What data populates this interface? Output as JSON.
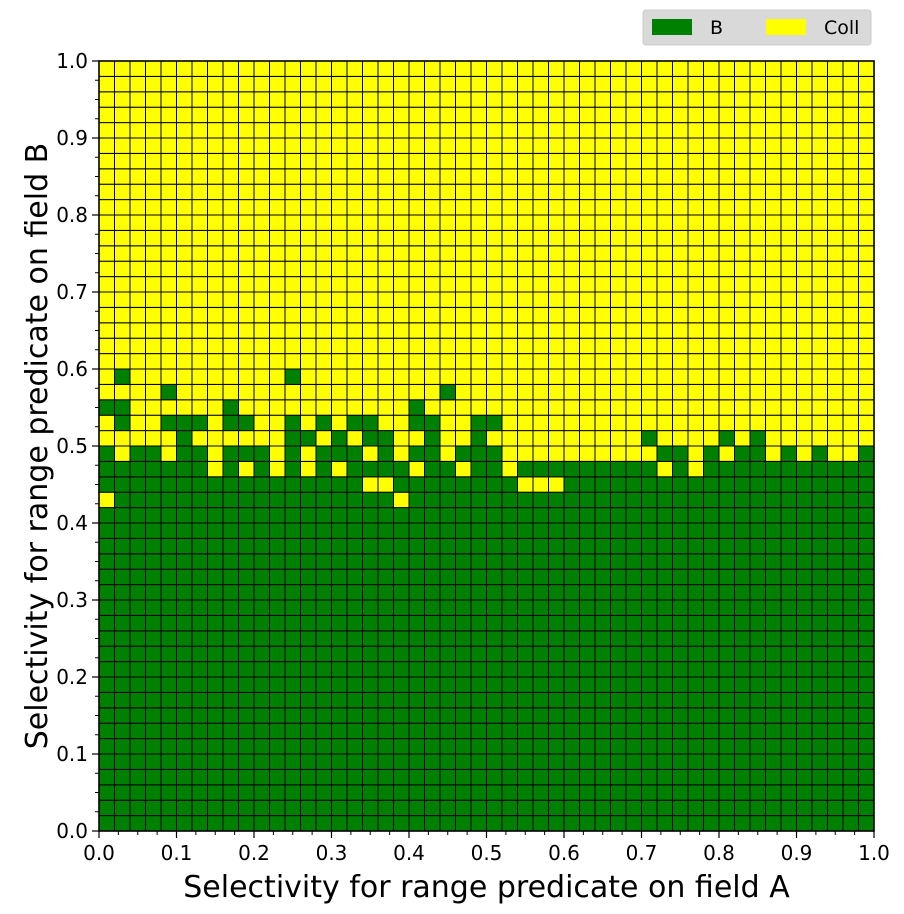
{
  "chart_data": {
    "type": "heatmap",
    "title": "",
    "xlabel": "Selectivity for range predicate on field A",
    "ylabel": "Selectivity for range predicate on field B",
    "xlim": [
      0.0,
      1.0
    ],
    "ylim": [
      0.0,
      1.0
    ],
    "x_ticks": [
      "0.0",
      "0.1",
      "0.2",
      "0.3",
      "0.4",
      "0.5",
      "0.6",
      "0.7",
      "0.8",
      "0.9",
      "1.0"
    ],
    "y_ticks": [
      "0.0",
      "0.1",
      "0.2",
      "0.3",
      "0.4",
      "0.5",
      "0.6",
      "0.7",
      "0.8",
      "0.9",
      "1.0"
    ],
    "grid_cols": 50,
    "grid_rows": 50,
    "cell_size": 0.02,
    "categories": [
      {
        "code": "B",
        "name": "B",
        "color": "#008000"
      },
      {
        "code": "C",
        "name": "Coll",
        "color": "#ffff00"
      }
    ],
    "legend_placement": "top-right",
    "column_upper_bounds": [
      0.5,
      0.48,
      0.5,
      0.5,
      0.5,
      0.5,
      0.5,
      0.46,
      0.5,
      0.46,
      0.48,
      0.46,
      0.5,
      0.46,
      0.5,
      0.46,
      0.5,
      0.48,
      0.5,
      0.48,
      0.5,
      0.48,
      0.48,
      0.48,
      0.48,
      0.48,
      0.48,
      0.48,
      0.48,
      0.48,
      0.48,
      0.48,
      0.48,
      0.48,
      0.48,
      0.48,
      0.5,
      0.5,
      0.48,
      0.5,
      0.48,
      0.5,
      0.5,
      0.48,
      0.5,
      0.48,
      0.5,
      0.5,
      0.48,
      0.5
    ],
    "b_exception_cells": [
      [
        0,
        0.54
      ],
      [
        1,
        0.54
      ],
      [
        1,
        0.52
      ],
      [
        1,
        0.58
      ],
      [
        2,
        0.48
      ],
      [
        3,
        0.48
      ],
      [
        4,
        0.52
      ],
      [
        4,
        0.56
      ],
      [
        5,
        0.5
      ],
      [
        5,
        0.52
      ],
      [
        6,
        0.52
      ],
      [
        8,
        0.52
      ],
      [
        8,
        0.54
      ],
      [
        9,
        0.52
      ],
      [
        9,
        0.48
      ],
      [
        10,
        0.48
      ],
      [
        12,
        0.5
      ],
      [
        12,
        0.52
      ],
      [
        12,
        0.58
      ],
      [
        13,
        0.5
      ],
      [
        14,
        0.52
      ],
      [
        14,
        0.48
      ],
      [
        15,
        0.5
      ],
      [
        15,
        0.48
      ],
      [
        16,
        0.52
      ],
      [
        16,
        0.48
      ],
      [
        17,
        0.5
      ],
      [
        17,
        0.52
      ],
      [
        18,
        0.5
      ],
      [
        18,
        0.48
      ],
      [
        20,
        0.48
      ],
      [
        20,
        0.52
      ],
      [
        20,
        0.54
      ],
      [
        21,
        0.48
      ],
      [
        21,
        0.5
      ],
      [
        21,
        0.52
      ],
      [
        22,
        0.56
      ],
      [
        23,
        0.48
      ],
      [
        24,
        0.5
      ],
      [
        24,
        0.52
      ],
      [
        24,
        0.48
      ],
      [
        25,
        0.48
      ],
      [
        25,
        0.52
      ],
      [
        35,
        0.5
      ],
      [
        40,
        0.5
      ],
      [
        42,
        0.5
      ]
    ],
    "coll_exception_cells": [
      [
        0,
        0.42
      ],
      [
        1,
        0.48
      ],
      [
        4,
        0.48
      ],
      [
        7,
        0.48
      ],
      [
        9,
        0.46
      ],
      [
        11,
        0.46
      ],
      [
        13,
        0.46
      ],
      [
        17,
        0.44
      ],
      [
        18,
        0.44
      ],
      [
        19,
        0.42
      ],
      [
        20,
        0.46
      ],
      [
        22,
        0.48
      ],
      [
        23,
        0.46
      ],
      [
        26,
        0.46
      ],
      [
        27,
        0.44
      ],
      [
        28,
        0.44
      ],
      [
        29,
        0.44
      ],
      [
        47,
        0.48
      ],
      [
        48,
        0.48
      ],
      [
        38,
        0.46
      ],
      [
        36,
        0.46
      ]
    ]
  }
}
